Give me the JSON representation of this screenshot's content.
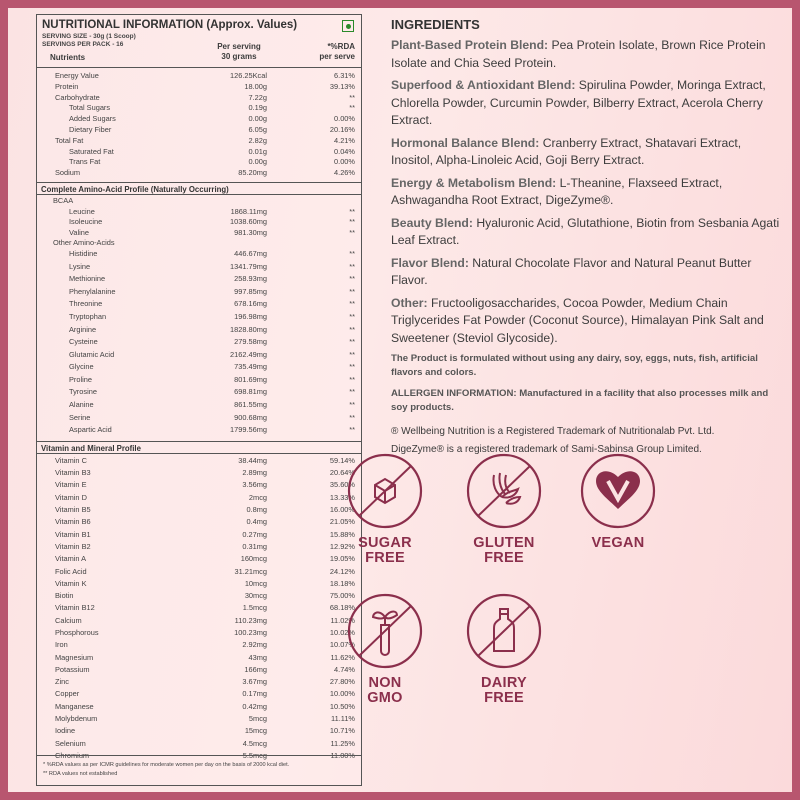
{
  "nutrition": {
    "title": "NUTRITIONAL INFORMATION (Approx. Values)",
    "serving_size": "SERVING SIZE - 30g  (1 Scoop)",
    "servings_per_pack": "SERVINGS PER PACK - 16",
    "col_nutrients": "Nutrients",
    "col_per_serving": "Per serving",
    "col_per_serving_2": "30 grams",
    "col_rda": "*%RDA",
    "col_rda_2": "per serve",
    "veg_mark": "vegetarian-mark-icon",
    "rows": [
      {
        "name": "Energy Value",
        "value": "126.25Kcal",
        "rda": "6.31%",
        "indent": 0
      },
      {
        "name": "Protein",
        "value": "18.00g",
        "rda": "39.13%",
        "indent": 0
      },
      {
        "name": "Carbohydrate",
        "value": "7.22g",
        "rda": "**",
        "indent": 0
      },
      {
        "name": "Total Sugars",
        "value": "0.19g",
        "rda": "**",
        "indent": 1
      },
      {
        "name": "Added Sugars",
        "value": "0.00g",
        "rda": "0.00%",
        "indent": 1
      },
      {
        "name": "Dietary Fiber",
        "value": "6.05g",
        "rda": "20.16%",
        "indent": 1
      },
      {
        "name": "Total Fat",
        "value": "2.82g",
        "rda": "4.21%",
        "indent": 0
      },
      {
        "name": "Saturated Fat",
        "value": "0.01g",
        "rda": "0.04%",
        "indent": 1
      },
      {
        "name": "Trans Fat",
        "value": "0.00g",
        "rda": "0.00%",
        "indent": 1
      },
      {
        "name": "Sodium",
        "value": "85.20mg",
        "rda": "4.26%",
        "indent": 0
      }
    ]
  },
  "amino": {
    "title": "Complete Amino-Acid Profile (Naturally Occurring)",
    "rows": [
      {
        "name": "BCAA",
        "value": "",
        "rda": "",
        "indent": 0
      },
      {
        "name": "Leucine",
        "value": "1868.11mg",
        "rda": "**",
        "indent": 1
      },
      {
        "name": "Isoleucine",
        "value": "1038.60mg",
        "rda": "**",
        "indent": 1
      },
      {
        "name": "Valine",
        "value": "981.30mg",
        "rda": "**",
        "indent": 1
      },
      {
        "name": "Other Amino-Acids",
        "value": "",
        "rda": "",
        "indent": 0
      },
      {
        "name": "Histidine",
        "value": "446.67mg",
        "rda": "**",
        "indent": 1
      },
      {
        "name": "Lysine",
        "value": "1341.79mg",
        "rda": "**",
        "indent": 1
      },
      {
        "name": "Methionine",
        "value": "258.93mg",
        "rda": "**",
        "indent": 1
      },
      {
        "name": "Phenylalanine",
        "value": "997.85mg",
        "rda": "**",
        "indent": 1
      },
      {
        "name": "Threonine",
        "value": "678.16mg",
        "rda": "**",
        "indent": 1
      },
      {
        "name": "Tryptophan",
        "value": "196.98mg",
        "rda": "**",
        "indent": 1
      },
      {
        "name": "Arginine",
        "value": "1828.80mg",
        "rda": "**",
        "indent": 1
      },
      {
        "name": "Cysteine",
        "value": "279.58mg",
        "rda": "**",
        "indent": 1
      },
      {
        "name": "Glutamic Acid",
        "value": "2162.49mg",
        "rda": "**",
        "indent": 1
      },
      {
        "name": "Glycine",
        "value": "735.49mg",
        "rda": "**",
        "indent": 1
      },
      {
        "name": "Proline",
        "value": "801.69mg",
        "rda": "**",
        "indent": 1
      },
      {
        "name": "Tyrosine",
        "value": "698.81mg",
        "rda": "**",
        "indent": 1
      },
      {
        "name": "Alanine",
        "value": "861.55mg",
        "rda": "**",
        "indent": 1
      },
      {
        "name": "Serine",
        "value": "900.68mg",
        "rda": "**",
        "indent": 1
      },
      {
        "name": "Aspartic Acid",
        "value": "1799.56mg",
        "rda": "**",
        "indent": 1
      }
    ]
  },
  "vitamins": {
    "title": "Vitamin and Mineral Profile",
    "rows": [
      {
        "name": "Vitamin C",
        "value": "38.44mg",
        "rda": "59.14%"
      },
      {
        "name": "Vitamin B3",
        "value": "2.89mg",
        "rda": "20.64%"
      },
      {
        "name": "Vitamin E",
        "value": "3.56mg",
        "rda": "35.60%"
      },
      {
        "name": "Vitamin D",
        "value": "2mcg",
        "rda": "13.33%"
      },
      {
        "name": "Vitamin B5",
        "value": "0.8mg",
        "rda": "16.00%"
      },
      {
        "name": "Vitamin B6",
        "value": "0.4mg",
        "rda": "21.05%"
      },
      {
        "name": "Vitamin B1",
        "value": "0.27mg",
        "rda": "15.88%"
      },
      {
        "name": "Vitamin B2",
        "value": "0.31mg",
        "rda": "12.92%"
      },
      {
        "name": "Vitamin A",
        "value": "160mcg",
        "rda": "19.05%"
      },
      {
        "name": "Folic Acid",
        "value": "31.21mcg",
        "rda": "24.12%"
      },
      {
        "name": "Vitamin K",
        "value": "10mcg",
        "rda": "18.18%"
      },
      {
        "name": "Biotin",
        "value": "30mcg",
        "rda": "75.00%"
      },
      {
        "name": "Vitamin B12",
        "value": "1.5mcg",
        "rda": "68.18%"
      },
      {
        "name": "Calcium",
        "value": "110.23mg",
        "rda": "11.02%"
      },
      {
        "name": "Phosphorous",
        "value": "100.23mg",
        "rda": "10.02%"
      },
      {
        "name": "Iron",
        "value": "2.92mg",
        "rda": "10.07%"
      },
      {
        "name": "Magnesium",
        "value": "43mg",
        "rda": "11.62%"
      },
      {
        "name": "Potassium",
        "value": "166mg",
        "rda": "4.74%"
      },
      {
        "name": "Zinc",
        "value": "3.67mg",
        "rda": "27.80%"
      },
      {
        "name": "Copper",
        "value": "0.17mg",
        "rda": "10.00%"
      },
      {
        "name": "Manganese",
        "value": "0.42mg",
        "rda": "10.50%"
      },
      {
        "name": "Molybdenum",
        "value": "5mcg",
        "rda": "11.11%"
      },
      {
        "name": "Iodine",
        "value": "15mcg",
        "rda": "10.71%"
      },
      {
        "name": "Selenium",
        "value": "4.5mcg",
        "rda": "11.25%"
      },
      {
        "name": "Chromium",
        "value": "5.5mcg",
        "rda": "11.00%"
      }
    ]
  },
  "footnotes": [
    "* %RDA values as per ICMR guidelines for moderate women per day on the basis of 2000 kcal diet.",
    "** RDA values not established"
  ],
  "ingredients": {
    "heading": "INGREDIENTS",
    "blends": [
      {
        "name": "Plant-Based Protein Blend:",
        "text": " Pea Protein Isolate, Brown Rice Protein Isolate and Chia Seed Protein."
      },
      {
        "name": "Superfood & Antioxidant Blend:",
        "text": " Spirulina Powder, Moringa Extract, Chlorella Powder, Curcumin Powder, Bilberry Extract, Acerola Cherry Extract."
      },
      {
        "name": "Hormonal Balance Blend:",
        "text": " Cranberry Extract, Shatavari Extract, Inositol, Alpha-Linoleic Acid, Goji Berry Extract."
      },
      {
        "name": "Energy & Metabolism Blend:",
        "text": " L-Theanine, Flaxseed Extract, Ashwagandha Root Extract, DigeZyme®."
      },
      {
        "name": "Beauty Blend:",
        "text": " Hyaluronic Acid, Glutathione, Biotin from Sesbania Agati Leaf Extract."
      },
      {
        "name": "Flavor Blend:",
        "text": " Natural Chocolate Flavor and Natural Peanut Butter Flavor."
      },
      {
        "name": "Other:",
        "text": " Fructooligosaccharides, Cocoa Powder, Medium Chain Triglycerides Fat Powder (Coconut Source), Himalayan Pink Salt and Sweetener (Steviol Glycoside)."
      }
    ],
    "free_from": "The Product is formulated without using any  dairy, soy, eggs, nuts, fish, artificial flavors and colors.",
    "allergen": "ALLERGEN INFORMATION: Manufactured in a  facility that also processes milk and soy products.",
    "trademark_1": "® Wellbeing Nutrition is a Registered Trademark of Nutritionalab Pvt. Ltd.",
    "trademark_2": "DigeZyme® is a registered trademark of Sami-Sabinsa Group Limited."
  },
  "badges": [
    {
      "icon": "sugar-cube-crossed-icon",
      "line1": "SUGAR",
      "line2": "FREE"
    },
    {
      "icon": "wheat-crossed-icon",
      "line1": "GLUTEN",
      "line2": "FREE"
    },
    {
      "icon": "vegan-heart-icon",
      "line1": "VEGAN",
      "line2": ""
    },
    {
      "icon": "sprout-testtube-crossed-icon",
      "line1": "NON",
      "line2": "GMO"
    },
    {
      "icon": "milk-bottle-crossed-icon",
      "line1": "DAIRY",
      "line2": "FREE"
    }
  ],
  "colors": {
    "frame": "#b8566f",
    "background": "#fbe3e3",
    "badge": "#8b2f4c"
  }
}
